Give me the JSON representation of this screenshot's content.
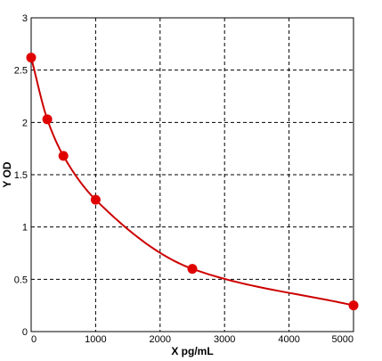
{
  "chart_data": {
    "type": "scatter",
    "title": "",
    "xlabel": "X pg/mL",
    "ylabel": "Y OD",
    "xlim": [
      0,
      5000
    ],
    "ylim": [
      0,
      3
    ],
    "xticks": [
      0,
      1000,
      2000,
      3000,
      4000,
      5000
    ],
    "yticks": [
      0,
      0.5,
      1,
      1.5,
      2,
      2.5,
      3
    ],
    "xtick_labels": [
      "0",
      "1000",
      "2000",
      "3000",
      "4000",
      "5000"
    ],
    "ytick_labels": [
      "0",
      "0.5",
      "1",
      "1.5",
      "2",
      "2.5",
      "3"
    ],
    "grid": true,
    "grid_style": "dashed",
    "points": {
      "x": [
        0,
        250,
        500,
        1000,
        2500,
        5000
      ],
      "y": [
        2.62,
        2.03,
        1.68,
        1.26,
        0.6,
        0.25
      ]
    },
    "fit_curve": true,
    "colors": {
      "points": "#e00000",
      "curve": "#cc0000",
      "grid": "#000000",
      "axes": "#000000"
    }
  }
}
